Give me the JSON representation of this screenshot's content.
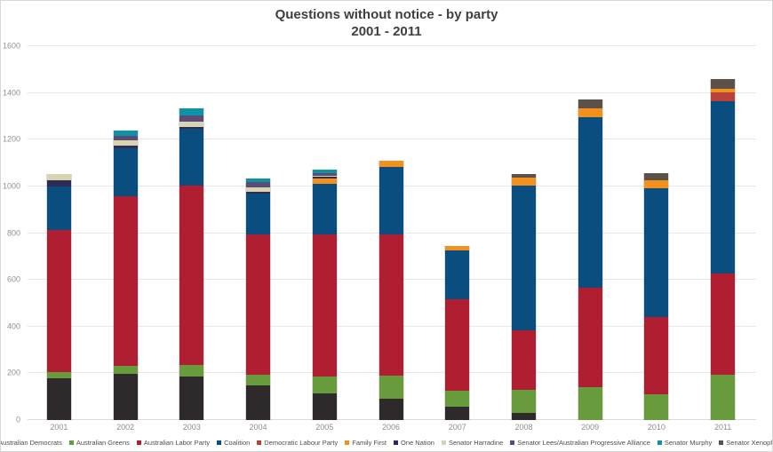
{
  "title": {
    "line1": "Questions without notice - by party",
    "line2": "2001 - 2011"
  },
  "chart_data": {
    "type": "bar",
    "stacked": true,
    "title": "Questions without notice - by party\n2001 - 2011",
    "xlabel": "",
    "ylabel": "",
    "ylim": [
      0,
      1600
    ],
    "ytick_step": 200,
    "yticks": [
      0,
      200,
      400,
      600,
      800,
      1000,
      1200,
      1400,
      1600
    ],
    "grid": true,
    "legend_position": "bottom",
    "categories": [
      "2001",
      "2002",
      "2003",
      "2004",
      "2005",
      "2006",
      "2007",
      "2008",
      "2009",
      "2010",
      "2011"
    ],
    "series": [
      {
        "name": "Australian Democrats",
        "color": "#2e2a2b",
        "values": [
          180,
          196,
          186,
          148,
          113,
          92,
          56,
          29,
          0,
          0,
          0
        ]
      },
      {
        "name": "Australian Greens",
        "color": "#689b3c",
        "values": [
          25,
          37,
          51,
          45,
          73,
          97,
          68,
          102,
          141,
          109,
          194
        ]
      },
      {
        "name": "Australian Labor Party",
        "color": "#b01e31",
        "values": [
          610,
          723,
          768,
          600,
          607,
          605,
          393,
          252,
          427,
          331,
          434
        ]
      },
      {
        "name": "Coalition",
        "color": "#0a4e7f",
        "values": [
          185,
          208,
          242,
          176,
          217,
          291,
          209,
          619,
          727,
          551,
          737
        ]
      },
      {
        "name": "Democratic Labour Party",
        "color": "#b8423a",
        "values": [
          0,
          0,
          0,
          0,
          0,
          0,
          0,
          0,
          0,
          0,
          36
        ]
      },
      {
        "name": "Family First",
        "color": "#f2921d",
        "values": [
          0,
          0,
          0,
          0,
          23,
          25,
          19,
          35,
          41,
          36,
          18
        ]
      },
      {
        "name": "One Nation",
        "color": "#2d2c55",
        "values": [
          26,
          11,
          9,
          6,
          7,
          0,
          0,
          0,
          0,
          0,
          0
        ]
      },
      {
        "name": "Senator Harradine",
        "color": "#d8d4b2",
        "values": [
          28,
          21,
          23,
          22,
          5,
          0,
          0,
          0,
          0,
          0,
          0
        ]
      },
      {
        "name": "Senator Lees/Australian Progressive Alliance",
        "color": "#5c4a77",
        "values": [
          0,
          19,
          25,
          21,
          13,
          0,
          0,
          0,
          0,
          0,
          0
        ]
      },
      {
        "name": "Senator Murphy",
        "color": "#0d93a3",
        "values": [
          0,
          24,
          30,
          15,
          15,
          0,
          0,
          0,
          0,
          0,
          0
        ]
      },
      {
        "name": "Senator Xenophon",
        "color": "#5c5148",
        "values": [
          0,
          0,
          0,
          0,
          0,
          0,
          0,
          16,
          36,
          28,
          42
        ]
      }
    ]
  }
}
